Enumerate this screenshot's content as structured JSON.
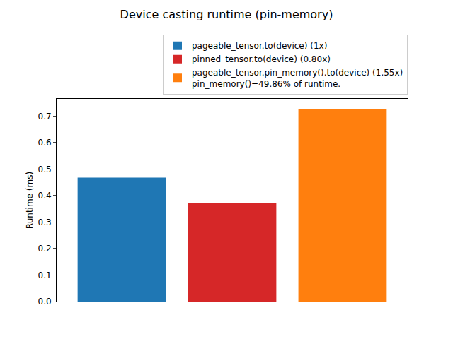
{
  "chart_data": {
    "type": "bar",
    "title": "Device casting runtime (pin-memory)",
    "y_label": "Runtime (ms)",
    "categories": [
      null,
      null,
      null
    ],
    "series": [
      {
        "name": "pageable_tensor.to(device) (1x)",
        "color": "#1f77b4",
        "values": [
          0.468,
          null,
          null
        ]
      },
      {
        "name": "pinned_tensor.to(device) (0.80x)",
        "color": "#d62728",
        "values": [
          null,
          0.372,
          null
        ]
      },
      {
        "name": "pageable_tensor.pin_memory().to(device) (1.55x)\npin_memory()=49.86% of runtime.",
        "color": "#ff7f0e",
        "values": [
          null,
          null,
          0.728
        ]
      }
    ],
    "ylim": [
      0,
      0.765
    ],
    "yticks": [
      {
        "value": 0,
        "label": "0.0"
      },
      0.1,
      0.2,
      0.3,
      0.4,
      0.5,
      0.6,
      0.7
    ],
    "grid": false,
    "legend": "upper right",
    "tick_labels": "y"
  }
}
